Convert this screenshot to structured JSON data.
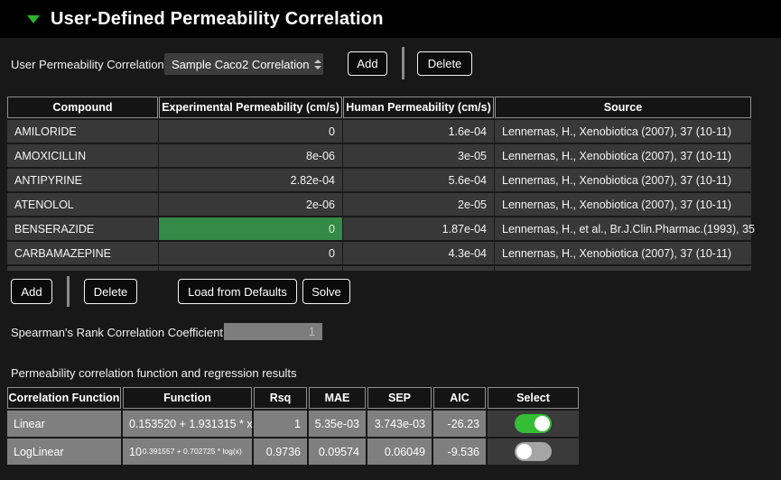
{
  "header": {
    "title": "User-Defined Permeability Correlation"
  },
  "controls": {
    "label": "User Permeability Correlation",
    "dropdown_value": "Sample Caco2 Correlation",
    "add_label": "Add",
    "delete_label": "Delete"
  },
  "compound_table": {
    "columns": [
      "Compound",
      "Experimental Permeability (cm/s)",
      "Human Permeability (cm/s)",
      "Source"
    ],
    "rows": [
      {
        "compound": "AMILORIDE",
        "experimental": "0",
        "human": "1.6e-04",
        "source": "Lennernas, H., Xenobiotica (2007), 37 (10-11)"
      },
      {
        "compound": "AMOXICILLIN",
        "experimental": "8e-06",
        "human": "3e-05",
        "source": "Lennernas, H., Xenobiotica (2007), 37 (10-11)"
      },
      {
        "compound": "ANTIPYRINE",
        "experimental": "2.82e-04",
        "human": "5.6e-04",
        "source": "Lennernas, H., Xenobiotica (2007), 37 (10-11)"
      },
      {
        "compound": "ATENOLOL",
        "experimental": "2e-06",
        "human": "2e-05",
        "source": "Lennernas, H., Xenobiotica (2007), 37 (10-11)"
      },
      {
        "compound": "BENSERAZIDE",
        "experimental": "0",
        "human": "1.87e-04",
        "source": "Lennernas, H., et al., Br.J.Clin.Pharmac.(1993), 35"
      },
      {
        "compound": "CARBAMAZEPINE",
        "experimental": "0",
        "human": "4.3e-04",
        "source": "Lennernas, H., Xenobiotica (2007), 37 (10-11)"
      }
    ],
    "selected_cell": {
      "row": "BENSERAZIDE",
      "column": "Experimental Permeability (cm/s)",
      "highlight_color": "#348a47"
    }
  },
  "table_actions": {
    "add_label": "Add",
    "delete_label": "Delete",
    "load_defaults_label": "Load from Defaults",
    "solve_label": "Solve"
  },
  "spearman": {
    "label": "Spearman's Rank Correlation Coefficient:",
    "value": "1"
  },
  "regression": {
    "section_label": "Permeability correlation function and regression results",
    "columns": [
      "Correlation Function",
      "Function",
      "Rsq",
      "MAE",
      "SEP",
      "AIC",
      "Select"
    ],
    "rows": [
      {
        "name": "Linear",
        "function": "0.153520 + 1.931315 * x",
        "rsq": "1",
        "mae": "5.35e-03",
        "sep": "3.743e-03",
        "aic": "-26.23",
        "select": "on"
      },
      {
        "name": "LogLinear",
        "function_base": "10",
        "function_exponent": "0.391557 + 0.702725 * log(x)",
        "rsq": "0.9736",
        "mae": "0.09574",
        "sep": "0.06049",
        "aic": "-9.536",
        "select": "off"
      }
    ]
  },
  "colors": {
    "titlebar_bg": "#000000",
    "page_bg": "#181818",
    "accent_green": "#2ab32a",
    "selected_cell_green": "#348a47",
    "toggle_on_green": "#35bd35",
    "toggle_off_gray": "#a5a5a5",
    "row_bg": "#383838",
    "regression_cell_bg": "#7f7f7f"
  }
}
